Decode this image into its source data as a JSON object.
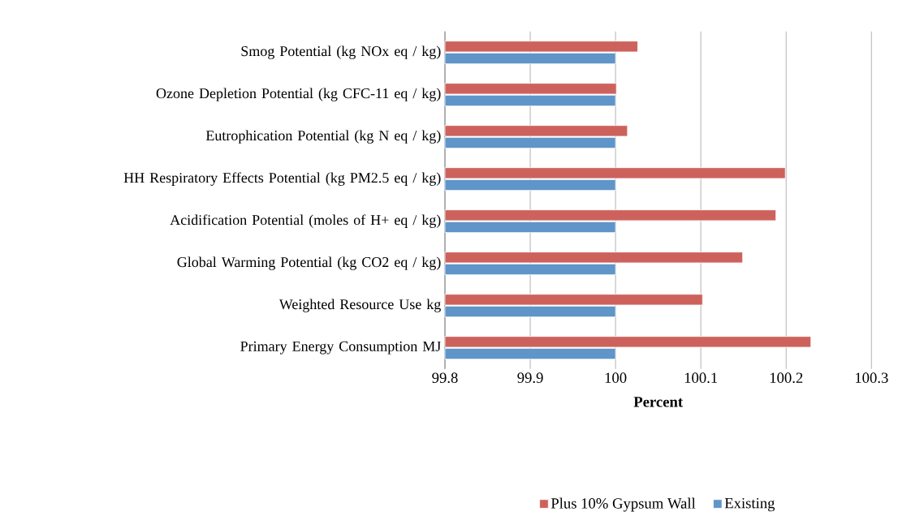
{
  "chart_data": {
    "type": "bar",
    "orientation": "horizontal",
    "categories": [
      "Smog Potential (kg NOx eq / kg)",
      "Ozone Depletion Potential (kg CFC-11 eq / kg)",
      "Eutrophication Potential (kg N eq / kg)",
      "HH Respiratory Effects Potential (kg PM2.5 eq / kg)",
      "Acidification Potential (moles of H+ eq / kg)",
      "Global Warming Potential (kg CO2 eq / kg)",
      "Weighted Resource Use kg",
      "Primary Energy Consumption MJ"
    ],
    "series": [
      {
        "name": "Plus 10% Gypsum Wall",
        "color": "#cd625d",
        "values": [
          100.026,
          100.001,
          100.014,
          100.199,
          100.188,
          100.149,
          100.102,
          100.229
        ]
      },
      {
        "name": "Existing",
        "color": "#5f95c9",
        "values": [
          100,
          100,
          100,
          100,
          100,
          100,
          100,
          100
        ]
      }
    ],
    "xlim": [
      99.8,
      100.3
    ],
    "xticks": [
      99.8,
      99.9,
      100,
      100.1,
      100.2,
      100.3
    ],
    "xlabel": "Percent",
    "grid": "x",
    "legend": "bottom"
  }
}
